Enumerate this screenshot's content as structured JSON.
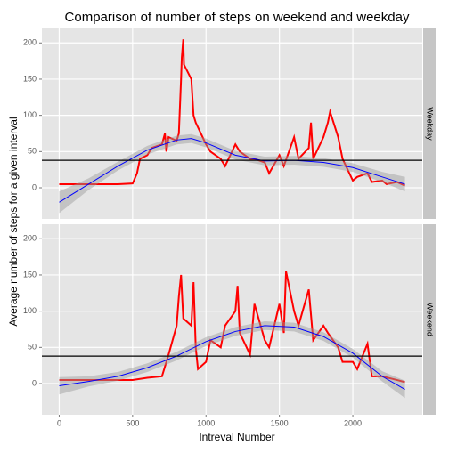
{
  "chart_data": {
    "type": "line",
    "title": "Comparison of number of steps on weekend and weekday",
    "xlabel": "Intreval Number",
    "ylabel": "Average number of steps for a given interval",
    "xlim": [
      -118,
      2473
    ],
    "xticks": [
      0,
      500,
      1000,
      1500,
      2000
    ],
    "ylim": [
      -43,
      220
    ],
    "yticks": [
      0,
      50,
      100,
      150,
      200
    ],
    "grid": true,
    "facets": [
      {
        "label": "Weekday",
        "hline": 38,
        "steps": {
          "color": "#ff0000",
          "x": [
            0,
            100,
            200,
            300,
            400,
            500,
            530,
            550,
            600,
            630,
            700,
            720,
            730,
            745,
            800,
            815,
            830,
            835,
            845,
            850,
            900,
            915,
            930,
            1000,
            1030,
            1100,
            1130,
            1200,
            1230,
            1300,
            1330,
            1400,
            1430,
            1500,
            1530,
            1600,
            1630,
            1700,
            1715,
            1730,
            1800,
            1830,
            1845,
            1900,
            1930,
            2000,
            2030,
            2100,
            2130,
            2200,
            2230,
            2300,
            2355
          ],
          "values": [
            5,
            5,
            5,
            5,
            5,
            6,
            20,
            40,
            45,
            55,
            60,
            75,
            50,
            70,
            65,
            75,
            150,
            180,
            205,
            170,
            150,
            100,
            90,
            60,
            50,
            40,
            30,
            60,
            50,
            40,
            40,
            35,
            20,
            45,
            30,
            70,
            40,
            55,
            90,
            40,
            70,
            90,
            105,
            70,
            40,
            10,
            15,
            20,
            8,
            10,
            5,
            8,
            3
          ]
        },
        "smooth": {
          "color": "#0000ff",
          "x": [
            0,
            200,
            400,
            600,
            800,
            900,
            1000,
            1200,
            1400,
            1600,
            1800,
            2000,
            2200,
            2355
          ],
          "values": [
            -20,
            5,
            30,
            52,
            66,
            68,
            62,
            45,
            37,
            38,
            35,
            28,
            15,
            5
          ],
          "lower": [
            -35,
            -3,
            24,
            46,
            60,
            62,
            56,
            39,
            31,
            32,
            29,
            22,
            8,
            -5
          ],
          "upper": [
            -5,
            13,
            36,
            58,
            72,
            74,
            68,
            51,
            43,
            44,
            41,
            34,
            22,
            15
          ]
        }
      },
      {
        "label": "Weekend",
        "hline": 38,
        "steps": {
          "color": "#ff0000",
          "x": [
            0,
            200,
            400,
            500,
            600,
            700,
            745,
            800,
            815,
            830,
            845,
            900,
            915,
            930,
            945,
            1000,
            1030,
            1100,
            1130,
            1200,
            1215,
            1230,
            1300,
            1330,
            1400,
            1430,
            1500,
            1530,
            1545,
            1600,
            1630,
            1700,
            1730,
            1800,
            1830,
            1900,
            1930,
            2000,
            2030,
            2100,
            2130,
            2200,
            2300,
            2355
          ],
          "values": [
            5,
            5,
            5,
            5,
            8,
            10,
            40,
            80,
            120,
            150,
            90,
            80,
            140,
            50,
            20,
            30,
            60,
            50,
            80,
            100,
            135,
            70,
            40,
            110,
            60,
            50,
            110,
            70,
            155,
            100,
            80,
            130,
            60,
            80,
            70,
            50,
            30,
            30,
            20,
            55,
            10,
            10,
            5,
            2
          ]
        },
        "smooth": {
          "color": "#0000ff",
          "x": [
            0,
            200,
            400,
            600,
            800,
            1000,
            1200,
            1400,
            1600,
            1800,
            2000,
            2200,
            2355
          ],
          "values": [
            -3,
            3,
            10,
            22,
            38,
            58,
            72,
            80,
            78,
            65,
            42,
            10,
            -8
          ],
          "lower": [
            -15,
            -4,
            4,
            16,
            32,
            52,
            66,
            74,
            72,
            59,
            36,
            3,
            -20
          ],
          "upper": [
            9,
            10,
            16,
            28,
            44,
            64,
            78,
            86,
            84,
            71,
            48,
            17,
            4
          ]
        }
      }
    ]
  }
}
